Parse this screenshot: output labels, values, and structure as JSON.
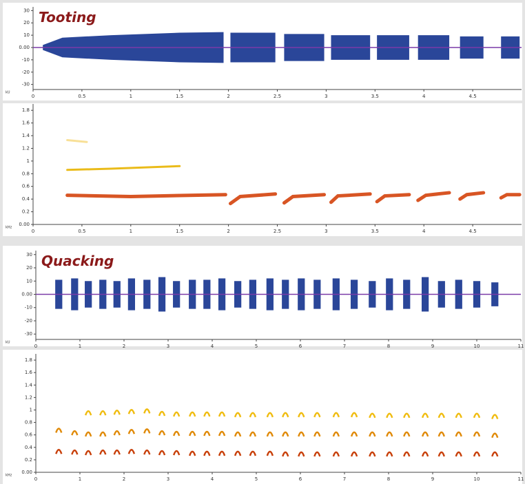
{
  "chart_data": [
    {
      "type": "waveform",
      "title": "Tooting",
      "y_label": "kU",
      "color": "#2a4699",
      "zero_color": "#7a3aa8",
      "x": [
        0.1,
        0.3,
        0.8,
        1.5,
        1.95,
        null,
        2.02,
        2.48,
        null,
        2.57,
        2.98,
        null,
        3.05,
        3.45,
        null,
        3.52,
        3.85,
        null,
        3.94,
        4.26,
        null,
        4.37,
        4.61,
        null,
        4.79,
        4.98
      ],
      "values": [
        2,
        8,
        10,
        12,
        12.5,
        null,
        12,
        12,
        null,
        11,
        11,
        null,
        10,
        10,
        null,
        10,
        10,
        null,
        10,
        10,
        null,
        9,
        9,
        null,
        9,
        9
      ],
      "xlim": [
        0,
        5.0
      ],
      "xticks": [
        0,
        0.5,
        1,
        1.5,
        2,
        2.5,
        3,
        3.5,
        4,
        4.5
      ],
      "ylim": [
        -33,
        33
      ],
      "yticks": [
        30,
        20,
        10,
        {
          "value": 0,
          "label": "0.00"
        },
        -10,
        -20,
        -30
      ]
    },
    {
      "type": "spectrogram",
      "style": "trace",
      "y_label": "kHz",
      "series": [
        {
          "color": "#f2c230",
          "x": [
            0.35,
            0.55
          ],
          "values": [
            1.33,
            1.3
          ]
        },
        {
          "color": "#e8b400",
          "x": [
            0.35,
            0.8,
            1.5
          ],
          "values": [
            0.86,
            0.88,
            0.92
          ]
        },
        {
          "color": "#d4420c",
          "x": [
            0.35,
            1.0,
            1.97,
            null,
            2.02,
            2.12,
            2.48,
            null,
            2.57,
            2.66,
            2.98,
            null,
            3.05,
            3.12,
            3.45,
            null,
            3.52,
            3.6,
            3.85,
            null,
            3.94,
            4.02,
            4.26,
            null,
            4.37,
            4.44,
            4.61,
            null,
            4.79,
            4.85,
            4.98
          ],
          "values": [
            0.46,
            0.44,
            0.47,
            null,
            0.33,
            0.44,
            0.48,
            null,
            0.34,
            0.44,
            0.47,
            null,
            0.35,
            0.45,
            0.48,
            null,
            0.36,
            0.45,
            0.47,
            null,
            0.38,
            0.46,
            0.5,
            null,
            0.4,
            0.47,
            0.5,
            null,
            0.42,
            0.47,
            0.47
          ]
        }
      ],
      "xlim": [
        0,
        5.0
      ],
      "xticks": [
        0,
        0.5,
        1,
        1.5,
        2,
        2.5,
        3,
        3.5,
        4,
        4.5
      ],
      "ylim": [
        0,
        1.9
      ],
      "yticks": [
        {
          "value": 0,
          "label": "0.00"
        },
        0.2,
        0.4,
        0.6,
        0.8,
        1,
        1.2,
        1.4,
        1.6,
        1.8
      ]
    },
    {
      "type": "waveform",
      "title": "Quacking",
      "y_label": "kU",
      "color": "#2a4699",
      "zero_color": "#7a3aa8",
      "x": [
        0.44,
        0.6,
        null,
        0.8,
        0.96,
        null,
        1.11,
        1.27,
        null,
        1.44,
        1.6,
        null,
        1.76,
        1.92,
        null,
        2.09,
        2.25,
        null,
        2.44,
        2.6,
        null,
        2.78,
        2.94,
        null,
        3.11,
        3.27,
        null,
        3.47,
        3.63,
        null,
        3.8,
        3.96,
        null,
        4.14,
        4.3,
        null,
        4.5,
        4.66,
        null,
        4.84,
        5.0,
        null,
        5.23,
        5.39,
        null,
        5.58,
        5.74,
        null,
        5.94,
        6.1,
        null,
        6.3,
        6.46,
        null,
        6.73,
        6.89,
        null,
        7.14,
        7.3,
        null,
        7.55,
        7.71,
        null,
        7.94,
        8.1,
        null,
        8.33,
        8.49,
        null,
        8.75,
        8.91,
        null,
        9.12,
        9.28,
        null,
        9.51,
        9.67,
        null,
        9.92,
        10.08,
        null,
        10.33,
        10.49
      ],
      "values": [
        11,
        11,
        null,
        12,
        12,
        null,
        10,
        10,
        null,
        11,
        11,
        null,
        10,
        10,
        null,
        12,
        12,
        null,
        11,
        11,
        null,
        13,
        13,
        null,
        10,
        10,
        null,
        11,
        11,
        null,
        11,
        11,
        null,
        12,
        12,
        null,
        10,
        10,
        null,
        11,
        11,
        null,
        12,
        12,
        null,
        11,
        11,
        null,
        12,
        12,
        null,
        11,
        11,
        null,
        12,
        12,
        null,
        11,
        11,
        null,
        10,
        10,
        null,
        12,
        12,
        null,
        11,
        11,
        null,
        13,
        13,
        null,
        10,
        10,
        null,
        11,
        11,
        null,
        10,
        10,
        null,
        9,
        9
      ],
      "xlim": [
        0,
        11.0
      ],
      "xticks": [
        0,
        1,
        2,
        3,
        4,
        5,
        6,
        7,
        8,
        9,
        10,
        11
      ],
      "ylim": [
        -33,
        33
      ],
      "yticks": [
        30,
        20,
        10,
        {
          "value": 0,
          "label": "0.00"
        },
        -10,
        -20,
        -30
      ]
    },
    {
      "type": "spectrogram",
      "style": "syllables",
      "y_label": "kHz",
      "x": [
        0.52,
        0.88,
        1.19,
        1.52,
        1.84,
        2.17,
        2.52,
        2.86,
        3.19,
        3.55,
        3.88,
        4.22,
        4.58,
        4.92,
        5.31,
        5.66,
        6.02,
        6.38,
        6.81,
        7.22,
        7.63,
        8.02,
        8.41,
        8.83,
        9.2,
        9.59,
        10.0,
        10.41
      ],
      "series": [
        {
          "color": "#f0bc10",
          "values": [
            null,
            null,
            0.96,
            0.96,
            0.97,
            0.98,
            0.99,
            0.95,
            0.94,
            0.94,
            0.94,
            0.94,
            0.93,
            0.93,
            0.93,
            0.93,
            0.93,
            0.93,
            0.93,
            0.93,
            0.92,
            0.92,
            0.92,
            0.92,
            0.92,
            0.92,
            0.92,
            0.9
          ]
        },
        {
          "color": "#e08a08",
          "values": [
            0.68,
            0.64,
            0.62,
            0.62,
            0.64,
            0.66,
            0.67,
            0.64,
            0.63,
            0.63,
            0.63,
            0.63,
            0.62,
            0.62,
            0.62,
            0.62,
            0.62,
            0.62,
            0.62,
            0.62,
            0.62,
            0.62,
            0.62,
            0.62,
            0.62,
            0.62,
            0.62,
            0.6
          ]
        },
        {
          "color": "#c8400a",
          "values": [
            0.34,
            0.33,
            0.32,
            0.33,
            0.33,
            0.34,
            0.33,
            0.32,
            0.32,
            0.31,
            0.31,
            0.31,
            0.31,
            0.31,
            0.31,
            0.3,
            0.3,
            0.3,
            0.3,
            0.3,
            0.3,
            0.3,
            0.3,
            0.3,
            0.3,
            0.3,
            0.3,
            0.3
          ]
        }
      ],
      "xlim": [
        0,
        11.0
      ],
      "xticks": [
        0,
        1,
        2,
        3,
        4,
        5,
        6,
        7,
        8,
        9,
        10,
        11
      ],
      "ylim": [
        0,
        1.9
      ],
      "yticks": [
        {
          "value": 0,
          "label": "0.00"
        },
        0.2,
        0.4,
        0.6,
        0.8,
        1,
        1.2,
        1.4,
        1.6,
        1.8
      ]
    }
  ]
}
